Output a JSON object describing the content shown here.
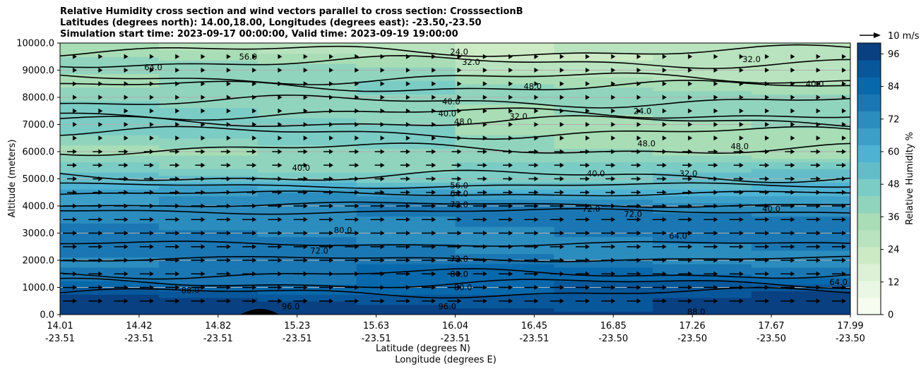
{
  "title": {
    "line1": "Relative Humidity cross section and wind vectors parallel to cross section: CrosssectionB",
    "line2": "Latitudes (degrees north): 14.00,18.00, Longitudes (degrees east): -23.50,-23.50",
    "line3": "Simulation start time: 2023-09-17 00:00:00, Valid time: 2023-09-19 19:00:00"
  },
  "chart_data": {
    "type": "heatmap",
    "xlabel_lat": "Latitude (degrees N)",
    "xlabel_lon": "Longitude (degrees E)",
    "ylabel": "Altitude (meters)",
    "ylim": [
      0,
      10000
    ],
    "x_ticks": [
      {
        "lat": "14.01",
        "lon": "-23.51"
      },
      {
        "lat": "14.42",
        "lon": "-23.51"
      },
      {
        "lat": "14.82",
        "lon": "-23.51"
      },
      {
        "lat": "15.23",
        "lon": "-23.51"
      },
      {
        "lat": "15.63",
        "lon": "-23.51"
      },
      {
        "lat": "16.04",
        "lon": "-23.51"
      },
      {
        "lat": "16.45",
        "lon": "-23.51"
      },
      {
        "lat": "16.85",
        "lon": "-23.50"
      },
      {
        "lat": "17.26",
        "lon": "-23.50"
      },
      {
        "lat": "17.67",
        "lon": "-23.50"
      },
      {
        "lat": "17.99",
        "lon": "-23.50"
      }
    ],
    "y_ticks": [
      "0.0",
      "1000.0",
      "2000.0",
      "3000.0",
      "4000.0",
      "5000.0",
      "6000.0",
      "7000.0",
      "8000.0",
      "9000.0",
      "10000.0"
    ],
    "colorbar": {
      "label": "Relative Humidity %",
      "range": [
        0,
        100
      ],
      "ticks": [
        "0",
        "12",
        "24",
        "36",
        "48",
        "60",
        "72",
        "84",
        "96"
      ],
      "colors": [
        "#f7fcf0",
        "#eaf7e4",
        "#dcf1d6",
        "#ccebc5",
        "#b8e3be",
        "#a8ddb5",
        "#90d4bd",
        "#7bccc4",
        "#63bdc9",
        "#4eb3d3",
        "#3c9fc8",
        "#2b8cbe",
        "#1a77b3",
        "#0868ac",
        "#07579a",
        "#084081"
      ]
    },
    "quiver_key": "10 m/s",
    "rh_profile": [
      {
        "alt": 0,
        "rh": 99
      },
      {
        "alt": 600,
        "rh": 93
      },
      {
        "alt": 1200,
        "rh": 84
      },
      {
        "alt": 2000,
        "rh": 76
      },
      {
        "alt": 3000,
        "rh": 77
      },
      {
        "alt": 4000,
        "rh": 73
      },
      {
        "alt": 4500,
        "rh": 64
      },
      {
        "alt": 5000,
        "rh": 50
      },
      {
        "alt": 6000,
        "rh": 40
      },
      {
        "alt": 7000,
        "rh": 45
      },
      {
        "alt": 8000,
        "rh": 44
      },
      {
        "alt": 9000,
        "rh": 37
      },
      {
        "alt": 10000,
        "rh": 30
      }
    ],
    "contour_labels": [
      {
        "text": "24.0",
        "alt": 9680,
        "frac": 0.505
      },
      {
        "text": "32.0",
        "alt": 9300,
        "frac": 0.52
      },
      {
        "text": "40.0",
        "alt": 7850,
        "frac": 0.495
      },
      {
        "text": "40.0",
        "alt": 7400,
        "frac": 0.49
      },
      {
        "text": "48.0",
        "alt": 7100,
        "frac": 0.51
      },
      {
        "text": "56.0",
        "alt": 4750,
        "frac": 0.505
      },
      {
        "text": "64.0",
        "alt": 4450,
        "frac": 0.505
      },
      {
        "text": "72.0",
        "alt": 4050,
        "frac": 0.505
      },
      {
        "text": "72.0",
        "alt": 2050,
        "frac": 0.505
      },
      {
        "text": "80.0",
        "alt": 1500,
        "frac": 0.505
      },
      {
        "text": "80.0",
        "alt": 1000,
        "frac": 0.51
      },
      {
        "text": "96.0",
        "alt": 300,
        "frac": 0.49
      },
      {
        "text": "64.0",
        "alt": 9100,
        "frac": 0.118
      },
      {
        "text": "56.0",
        "alt": 9500,
        "frac": 0.238
      },
      {
        "text": "40.0",
        "alt": 5400,
        "frac": 0.305
      },
      {
        "text": "80.0",
        "alt": 3100,
        "frac": 0.358
      },
      {
        "text": "72.0",
        "alt": 2350,
        "frac": 0.328
      },
      {
        "text": "88.0",
        "alt": 900,
        "frac": 0.165
      },
      {
        "text": "96.0",
        "alt": 300,
        "frac": 0.292
      },
      {
        "text": "48.0",
        "alt": 8400,
        "frac": 0.598
      },
      {
        "text": "32.0",
        "alt": 7300,
        "frac": 0.58
      },
      {
        "text": "24.0",
        "alt": 7500,
        "frac": 0.737
      },
      {
        "text": "48.0",
        "alt": 6300,
        "frac": 0.742
      },
      {
        "text": "40.0",
        "alt": 5200,
        "frac": 0.678
      },
      {
        "text": "72.0",
        "alt": 3900,
        "frac": 0.672
      },
      {
        "text": "72.0",
        "alt": 3700,
        "frac": 0.725
      },
      {
        "text": "64.0",
        "alt": 2900,
        "frac": 0.782
      },
      {
        "text": "32.0",
        "alt": 9400,
        "frac": 0.875
      },
      {
        "text": "40.0",
        "alt": 8500,
        "frac": 0.955
      },
      {
        "text": "48.0",
        "alt": 6200,
        "frac": 0.86
      },
      {
        "text": "32.0",
        "alt": 5200,
        "frac": 0.795
      },
      {
        "text": "40.0",
        "alt": 3900,
        "frac": 0.9
      },
      {
        "text": "64.0",
        "alt": 1200,
        "frac": 0.985
      },
      {
        "text": "88.0",
        "alt": 100,
        "frac": 0.805
      }
    ]
  }
}
